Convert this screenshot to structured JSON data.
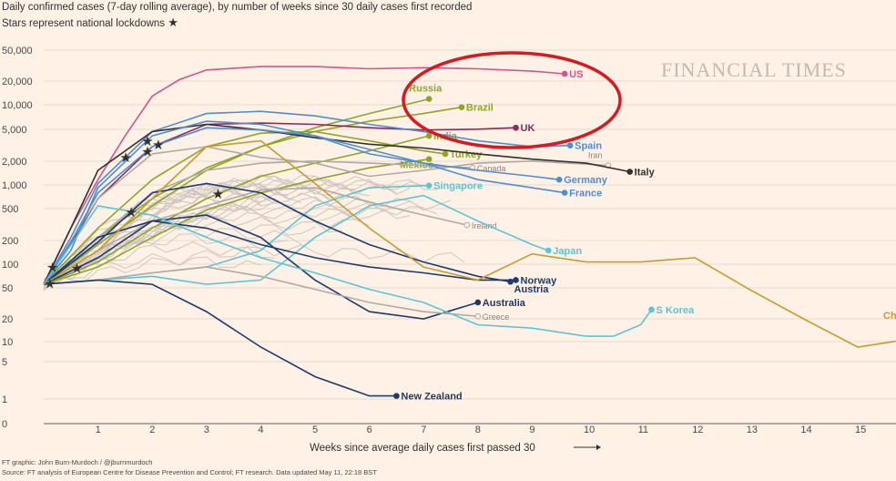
{
  "subtitle": "Daily confirmed cases (7-day rolling average), by number of weeks since 30 daily cases first recorded",
  "note": "Stars represent national lockdowns",
  "brand": "FINANCIAL TIMES",
  "credit": "FT graphic: John Burn-Murdoch / @jburnmurdoch",
  "source": "Source: FT analysis of European Centre for Disease Prevention and Control; FT research. Data updated May 11, 22:18 BST",
  "colors": {
    "background": "#fff1e5",
    "highlight_ellipse": "#d71921",
    "grid": "#e6d9ce",
    "background_lines": "#cfc6c0"
  },
  "chart_data": {
    "type": "line",
    "title": "",
    "xlabel": "Weeks since average daily cases first passed 30",
    "ylabel": "",
    "y_scale": "log",
    "y_ticks": [
      "50,000",
      "20,000",
      "10,000",
      "5,000",
      "2,000",
      "1,000",
      "500",
      "200",
      "100",
      "50",
      "20",
      "10",
      "5",
      "1",
      "0"
    ],
    "x_ticks": [
      "1",
      "2",
      "3",
      "4",
      "5",
      "6",
      "7",
      "8",
      "9",
      "10",
      "11",
      "12",
      "13",
      "14",
      "15"
    ],
    "xlim": [
      0,
      15.7
    ],
    "series": [
      {
        "name": "US",
        "color": "#d6538c",
        "end_label_position": "right",
        "points": [
          [
            0,
            35
          ],
          [
            0.5,
            200
          ],
          [
            1,
            900
          ],
          [
            1.5,
            3500
          ],
          [
            2,
            12000
          ],
          [
            2.5,
            20000
          ],
          [
            3,
            27000
          ],
          [
            4,
            30000
          ],
          [
            5,
            30000
          ],
          [
            6,
            28000
          ],
          [
            7,
            29000
          ],
          [
            8,
            28000
          ],
          [
            9,
            26000
          ],
          [
            9.6,
            24000
          ]
        ]
      },
      {
        "name": "Russia",
        "color": "#8fa526",
        "end_label_position": "above",
        "points": [
          [
            0,
            35
          ],
          [
            1,
            120
          ],
          [
            2,
            400
          ],
          [
            3,
            1200
          ],
          [
            4,
            2500
          ],
          [
            5,
            4500
          ],
          [
            6,
            7000
          ],
          [
            7.1,
            11000
          ]
        ]
      },
      {
        "name": "Brazil",
        "color": "#8fa526",
        "end_label_position": "right",
        "points": [
          [
            0,
            35
          ],
          [
            1,
            150
          ],
          [
            2,
            500
          ],
          [
            3,
            1300
          ],
          [
            4,
            2500
          ],
          [
            5,
            4000
          ],
          [
            6,
            5500
          ],
          [
            7,
            7000
          ],
          [
            7.7,
            8500
          ]
        ]
      },
      {
        "name": "UK",
        "color": "#8b2a5d",
        "end_label_position": "right",
        "points": [
          [
            0,
            35
          ],
          [
            0.5,
            120
          ],
          [
            1,
            500
          ],
          [
            2,
            2500
          ],
          [
            3,
            5000
          ],
          [
            4,
            5200
          ],
          [
            5,
            5000
          ],
          [
            6,
            4500
          ],
          [
            7,
            4200
          ],
          [
            8,
            4300
          ],
          [
            8.7,
            4500
          ]
        ]
      },
      {
        "name": "India",
        "color": "#8fa526",
        "end_label_position": "right",
        "points": [
          [
            0,
            35
          ],
          [
            1,
            70
          ],
          [
            2,
            200
          ],
          [
            3,
            500
          ],
          [
            4,
            1000
          ],
          [
            5,
            1500
          ],
          [
            6,
            2200
          ],
          [
            7.1,
            3500
          ]
        ]
      },
      {
        "name": "Spain",
        "color": "#4d8ed1",
        "end_label_position": "right",
        "points": [
          [
            0,
            35
          ],
          [
            0.5,
            150
          ],
          [
            1,
            800
          ],
          [
            2,
            4000
          ],
          [
            3,
            7000
          ],
          [
            4,
            7500
          ],
          [
            5,
            6500
          ],
          [
            6,
            5000
          ],
          [
            7,
            4000
          ],
          [
            8,
            3000
          ],
          [
            9,
            2500
          ],
          [
            9.7,
            2600
          ]
        ]
      },
      {
        "name": "Turkey",
        "color": "#8fa526",
        "end_label_position": "right",
        "points": [
          [
            0,
            35
          ],
          [
            1,
            200
          ],
          [
            2,
            900
          ],
          [
            3,
            2500
          ],
          [
            4,
            3800
          ],
          [
            5,
            4000
          ],
          [
            6,
            3000
          ],
          [
            7,
            2200
          ],
          [
            7.4,
            2000
          ]
        ]
      },
      {
        "name": "Mexico",
        "color": "#8fa526",
        "end_label_position": "left",
        "points": [
          [
            0,
            35
          ],
          [
            1,
            60
          ],
          [
            2,
            150
          ],
          [
            3,
            350
          ],
          [
            4,
            600
          ],
          [
            5,
            900
          ],
          [
            6,
            1300
          ],
          [
            7.1,
            1700
          ]
        ]
      },
      {
        "name": "Canada",
        "color": "#b0aaa5",
        "end_label_position": "right",
        "points": [
          [
            0,
            35
          ],
          [
            1,
            150
          ],
          [
            2,
            600
          ],
          [
            3,
            1200
          ],
          [
            4,
            1500
          ],
          [
            5,
            1600
          ],
          [
            6,
            1500
          ],
          [
            7,
            1400
          ],
          [
            7.9,
            1300
          ]
        ]
      },
      {
        "name": "Iran",
        "color": "#b0aaa5",
        "end_label_position": "above",
        "points": [
          [
            0,
            35
          ],
          [
            1,
            500
          ],
          [
            2,
            2000
          ],
          [
            3,
            2500
          ],
          [
            4,
            1800
          ],
          [
            5,
            1500
          ],
          [
            6,
            1000
          ],
          [
            7,
            1200
          ],
          [
            8,
            1500
          ],
          [
            9,
            1600
          ],
          [
            10.4,
            1400
          ]
        ]
      },
      {
        "name": "Italy",
        "color": "#33302e",
        "end_label_position": "right",
        "points": [
          [
            0,
            35
          ],
          [
            0.5,
            200
          ],
          [
            1,
            1200
          ],
          [
            2,
            4000
          ],
          [
            3,
            5000
          ],
          [
            4,
            4200
          ],
          [
            5,
            3300
          ],
          [
            6,
            2700
          ],
          [
            7,
            2400
          ],
          [
            8,
            2000
          ],
          [
            9,
            1700
          ],
          [
            10,
            1500
          ],
          [
            10.8,
            1150
          ]
        ]
      },
      {
        "name": "Germany",
        "color": "#4d8ed1",
        "end_label_position": "right",
        "points": [
          [
            0,
            35
          ],
          [
            0.5,
            100
          ],
          [
            1,
            700
          ],
          [
            2,
            3500
          ],
          [
            3,
            5500
          ],
          [
            4,
            5000
          ],
          [
            5,
            3500
          ],
          [
            6,
            2000
          ],
          [
            7,
            1500
          ],
          [
            8,
            1200
          ],
          [
            9,
            1000
          ],
          [
            9.5,
            900
          ]
        ]
      },
      {
        "name": "Singapore",
        "color": "#5bc5d6",
        "end_label_position": "right",
        "points": [
          [
            0,
            35
          ],
          [
            1,
            40
          ],
          [
            2,
            50
          ],
          [
            3,
            60
          ],
          [
            4,
            100
          ],
          [
            5,
            400
          ],
          [
            6,
            700
          ],
          [
            7.1,
            750
          ]
        ]
      },
      {
        "name": "France",
        "color": "#4d8ed1",
        "end_label_position": "right",
        "points": [
          [
            0,
            35
          ],
          [
            0.5,
            130
          ],
          [
            1,
            600
          ],
          [
            2,
            2500
          ],
          [
            3,
            4500
          ],
          [
            4,
            4200
          ],
          [
            5,
            3500
          ],
          [
            6,
            2300
          ],
          [
            7,
            1500
          ],
          [
            8,
            900
          ],
          [
            9,
            700
          ],
          [
            9.6,
            600
          ]
        ]
      },
      {
        "name": "Ireland",
        "color": "#b0aaa5",
        "end_label_position": "right",
        "points": [
          [
            0,
            35
          ],
          [
            1,
            100
          ],
          [
            2,
            250
          ],
          [
            3,
            400
          ],
          [
            4,
            650
          ],
          [
            5,
            700
          ],
          [
            6,
            450
          ],
          [
            7,
            300
          ],
          [
            7.8,
            220
          ]
        ]
      },
      {
        "name": "Japan",
        "color": "#5bc5d6",
        "end_label_position": "right",
        "points": [
          [
            0,
            35
          ],
          [
            1,
            40
          ],
          [
            2,
            45
          ],
          [
            3,
            35
          ],
          [
            4,
            40
          ],
          [
            5,
            150
          ],
          [
            6,
            400
          ],
          [
            7,
            550
          ],
          [
            8,
            250
          ],
          [
            9,
            120
          ],
          [
            9.3,
            100
          ]
        ]
      },
      {
        "name": "Norway",
        "color": "#1e3a6e",
        "end_label_position": "right",
        "points": [
          [
            0,
            35
          ],
          [
            1,
            150
          ],
          [
            2,
            250
          ],
          [
            3,
            200
          ],
          [
            4,
            120
          ],
          [
            5,
            80
          ],
          [
            6,
            60
          ],
          [
            7,
            50
          ],
          [
            8,
            40
          ],
          [
            8.7,
            40
          ]
        ]
      },
      {
        "name": "Austria",
        "color": "#1e3a6e",
        "end_label_position": "below",
        "points": [
          [
            0,
            35
          ],
          [
            1,
            130
          ],
          [
            2,
            600
          ],
          [
            3,
            800
          ],
          [
            4,
            600
          ],
          [
            5,
            250
          ],
          [
            6,
            120
          ],
          [
            7,
            70
          ],
          [
            8,
            45
          ],
          [
            8.6,
            38
          ]
        ]
      },
      {
        "name": "Australia",
        "color": "#1e3a6e",
        "end_label_position": "right",
        "points": [
          [
            0,
            35
          ],
          [
            1,
            80
          ],
          [
            2,
            250
          ],
          [
            3,
            300
          ],
          [
            4,
            150
          ],
          [
            5,
            40
          ],
          [
            6,
            15
          ],
          [
            7,
            12
          ],
          [
            8,
            20
          ]
        ]
      },
      {
        "name": "Greece",
        "color": "#b0aaa5",
        "end_label_position": "right",
        "points": [
          [
            0,
            35
          ],
          [
            1,
            40
          ],
          [
            2,
            50
          ],
          [
            3,
            60
          ],
          [
            4,
            45
          ],
          [
            5,
            30
          ],
          [
            6,
            20
          ],
          [
            7,
            15
          ],
          [
            8,
            13
          ]
        ]
      },
      {
        "name": "S Korea",
        "color": "#5bc5d6",
        "end_label_position": "right",
        "points": [
          [
            0,
            35
          ],
          [
            1,
            400
          ],
          [
            2,
            300
          ],
          [
            3,
            150
          ],
          [
            4,
            80
          ],
          [
            5,
            50
          ],
          [
            6,
            30
          ],
          [
            7,
            20
          ],
          [
            8,
            10
          ],
          [
            9,
            9
          ],
          [
            10,
            7
          ],
          [
            10.5,
            7
          ],
          [
            11,
            10
          ],
          [
            11.2,
            16
          ]
        ]
      },
      {
        "name": "New Zealand",
        "color": "#1e3a6e",
        "end_label_position": "right",
        "points": [
          [
            0,
            35
          ],
          [
            1,
            40
          ],
          [
            2,
            35
          ],
          [
            3,
            15
          ],
          [
            4,
            5
          ],
          [
            5,
            2
          ],
          [
            6,
            1.1
          ],
          [
            6.5,
            1.1
          ]
        ]
      },
      {
        "name": "China",
        "color": "#c99b2e",
        "end_label_position": "clipped",
        "points": [
          [
            0,
            35
          ],
          [
            1,
            100
          ],
          [
            2,
            500
          ],
          [
            3,
            2500
          ],
          [
            4,
            3000
          ],
          [
            5,
            800
          ],
          [
            6,
            200
          ],
          [
            7,
            60
          ],
          [
            8,
            40
          ],
          [
            9,
            90
          ],
          [
            10,
            70
          ],
          [
            11,
            70
          ],
          [
            12,
            80
          ],
          [
            13,
            30
          ],
          [
            14,
            12
          ],
          [
            15,
            5
          ],
          [
            15.7,
            6
          ]
        ]
      }
    ],
    "lockdown_stars": [
      {
        "series": "Italy",
        "x": 0.15
      },
      {
        "series": "Spain",
        "x": 1.5
      },
      {
        "series": "France",
        "x": 2.1
      },
      {
        "series": "UK",
        "x": 1.9
      },
      {
        "series": "Germany",
        "x": 1.9
      },
      {
        "series": "India",
        "x": 3.2
      },
      {
        "series": "Australia",
        "x": 0.6
      },
      {
        "series": "New Zealand",
        "x": 0.1
      },
      {
        "series": "Austria",
        "x": 1.6
      }
    ],
    "highlight": "US, Russia, Brazil, UK circled"
  }
}
